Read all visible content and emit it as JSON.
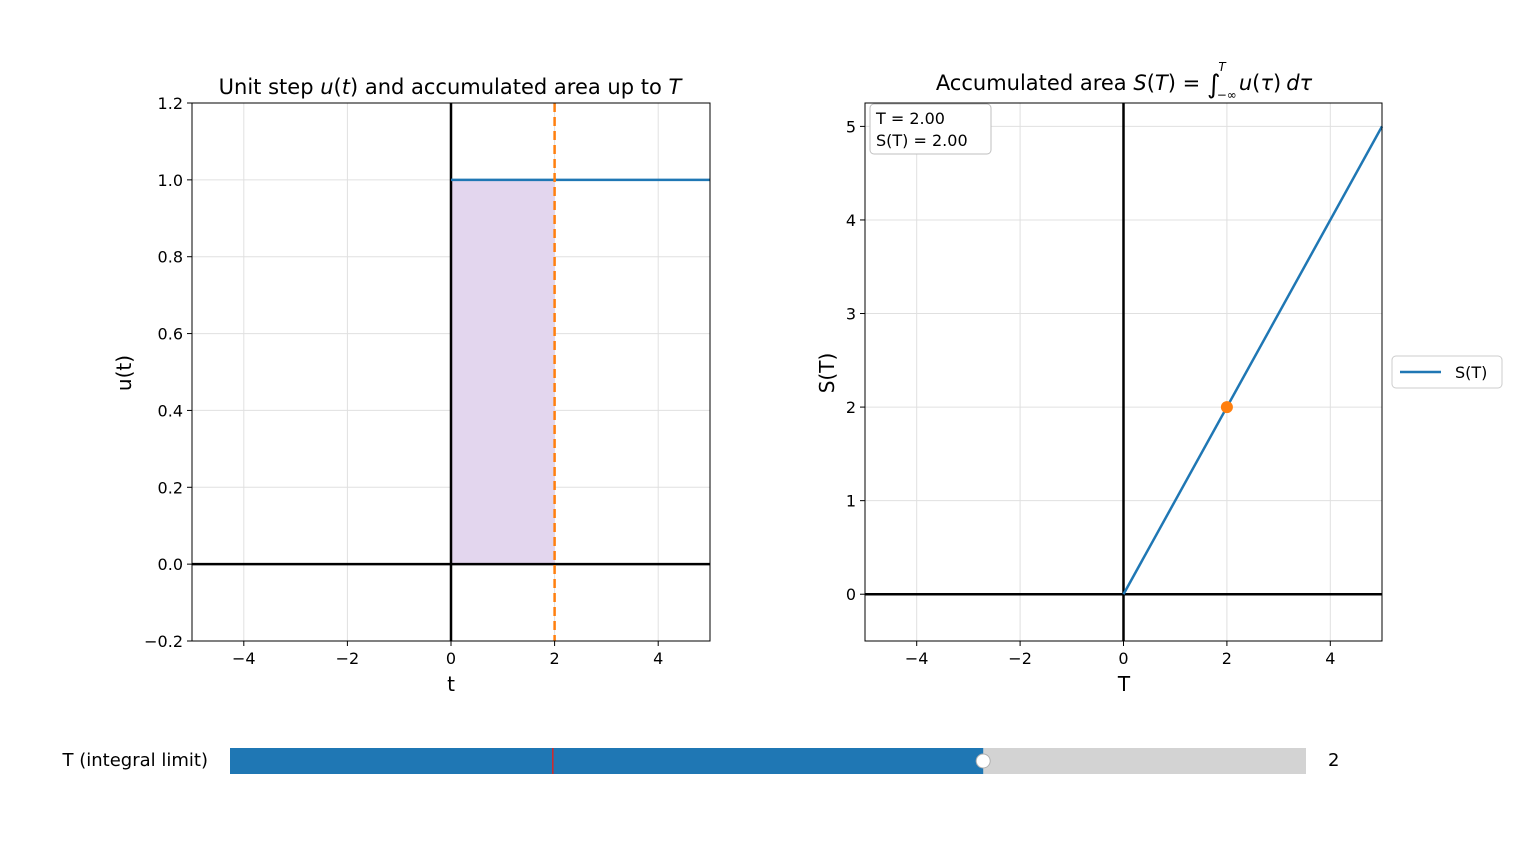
{
  "colors": {
    "step_line": "#1f77b4",
    "cursor": "#ff7f0e",
    "area_fill": "#e3d6ee",
    "axis": "#000000",
    "grid": "#e0e0e0",
    "slider_fill": "#1f77b4",
    "slider_track": "#d3d3d3",
    "slider_init_marker": "#d62728",
    "slider_handle": "#ffffff"
  },
  "chart_data": [
    {
      "type": "line",
      "title": "Unit step u(t) and accumulated area up to T",
      "title_parts": {
        "a": "Unit step ",
        "b": "u",
        "c": "(",
        "d": "t",
        "e": ") and accumulated area up to ",
        "f": "T"
      },
      "xlabel": "t",
      "ylabel": "u(t)",
      "xlim": [
        -5,
        5
      ],
      "ylim": [
        -0.2,
        1.2
      ],
      "xticks": [
        -4,
        -2,
        0,
        2,
        4
      ],
      "xtick_labels": [
        "−4",
        "−2",
        "0",
        "2",
        "4"
      ],
      "yticks": [
        -0.2,
        0.0,
        0.2,
        0.4,
        0.6,
        0.8,
        1.0,
        1.2
      ],
      "ytick_labels": [
        "−0.2",
        "0.0",
        "0.2",
        "0.4",
        "0.6",
        "0.8",
        "1.0",
        "1.2"
      ],
      "grid": true,
      "series": [
        {
          "x": [
            0,
            5
          ],
          "y": [
            1,
            1
          ]
        }
      ],
      "shaded_area": {
        "x_from": 0,
        "x_to": 2,
        "y_from": 0,
        "y_to": 1
      },
      "cursor_x": 2
    },
    {
      "type": "line",
      "title": "Accumulated area S(T) = ∫_{−∞}^{T} u(τ) dτ",
      "title_parts": {
        "a": "Accumulated area ",
        "b": "S",
        "c": "(",
        "d": "T",
        "e": ") = ",
        "int": "∫",
        "lower": "−∞",
        "upper": "T",
        "f": "u",
        "g": "(",
        "h": "τ",
        "i": ")",
        "j": "dτ"
      },
      "xlabel": "T",
      "ylabel": "S(T)",
      "xlim": [
        -5,
        5
      ],
      "ylim": [
        -0.5,
        5.25
      ],
      "xticks": [
        -4,
        -2,
        0,
        2,
        4
      ],
      "xtick_labels": [
        "−4",
        "−2",
        "0",
        "2",
        "4"
      ],
      "yticks": [
        0,
        1,
        2,
        3,
        4,
        5
      ],
      "ytick_labels": [
        "0",
        "1",
        "2",
        "3",
        "4",
        "5"
      ],
      "grid": true,
      "series": [
        {
          "name": "S(T)",
          "x": [
            -5,
            0,
            5
          ],
          "y": [
            0,
            0,
            5
          ]
        }
      ],
      "current_point": {
        "x": 2,
        "y": 2
      },
      "legend": {
        "placement": "right",
        "label": "S(T)"
      },
      "info_box": {
        "line1": "T = 2.00",
        "line2": "S(T) = 2.00"
      }
    }
  ],
  "slider": {
    "label": "T (integral limit)",
    "min": -5,
    "max": 5,
    "value": 2,
    "initial": -2,
    "value_text": "2"
  }
}
